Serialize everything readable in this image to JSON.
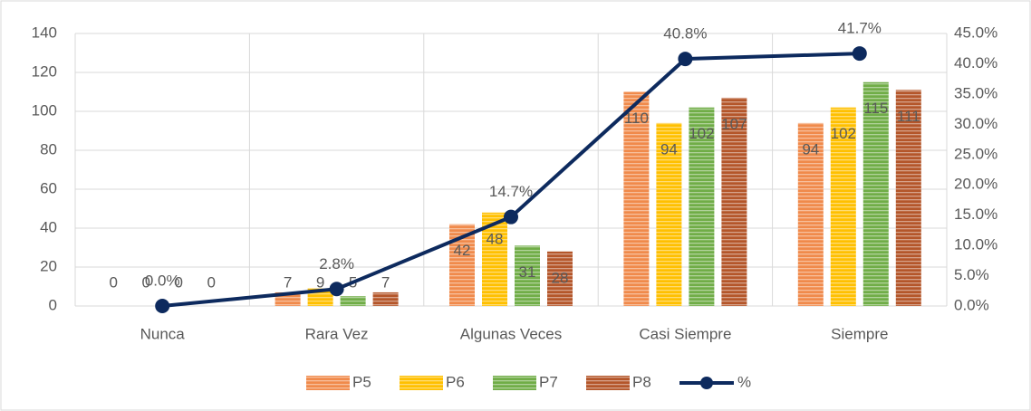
{
  "chart_data": {
    "type": "bar",
    "categories": [
      "Nunca",
      "Rara Vez",
      "Algunas Veces",
      "Casi Siempre",
      "Siempre"
    ],
    "series": [
      {
        "name": "P5",
        "color": "#f08a4b",
        "values": [
          0,
          7,
          42,
          110,
          94
        ]
      },
      {
        "name": "P6",
        "color": "#ffc000",
        "values": [
          0,
          9,
          48,
          94,
          102
        ]
      },
      {
        "name": "P7",
        "color": "#70ad47",
        "values": [
          0,
          5,
          31,
          102,
          115
        ]
      },
      {
        "name": "P8",
        "color": "#b4562a",
        "values": [
          0,
          7,
          28,
          107,
          111
        ]
      },
      {
        "name": "%",
        "color": "#0d2a5e",
        "type": "line",
        "axis": "y2",
        "values": [
          0.0,
          2.8,
          14.7,
          40.8,
          41.7
        ],
        "value_labels": [
          "0.0%",
          "2.8%",
          "14.7%",
          "40.8%",
          "41.7%"
        ]
      }
    ],
    "ylim": [
      0,
      140
    ],
    "yticks": [
      0,
      20,
      40,
      60,
      80,
      100,
      120,
      140
    ],
    "y2lim": [
      0,
      45
    ],
    "y2ticks": [
      {
        "value": 0,
        "label": "0.0%"
      },
      {
        "value": 5,
        "label": "5.0%"
      },
      {
        "value": 10,
        "label": "10.0%"
      },
      {
        "value": 15,
        "label": "15.0%"
      },
      {
        "value": 20,
        "label": "20.0%"
      },
      {
        "value": 25,
        "label": "25.0%"
      },
      {
        "value": 30,
        "label": "30.0%"
      },
      {
        "value": 35,
        "label": "35.0%"
      },
      {
        "value": 40,
        "label": "40.0%"
      },
      {
        "value": 45,
        "label": "45.0%"
      }
    ],
    "grid": true,
    "legend": "bottom"
  }
}
